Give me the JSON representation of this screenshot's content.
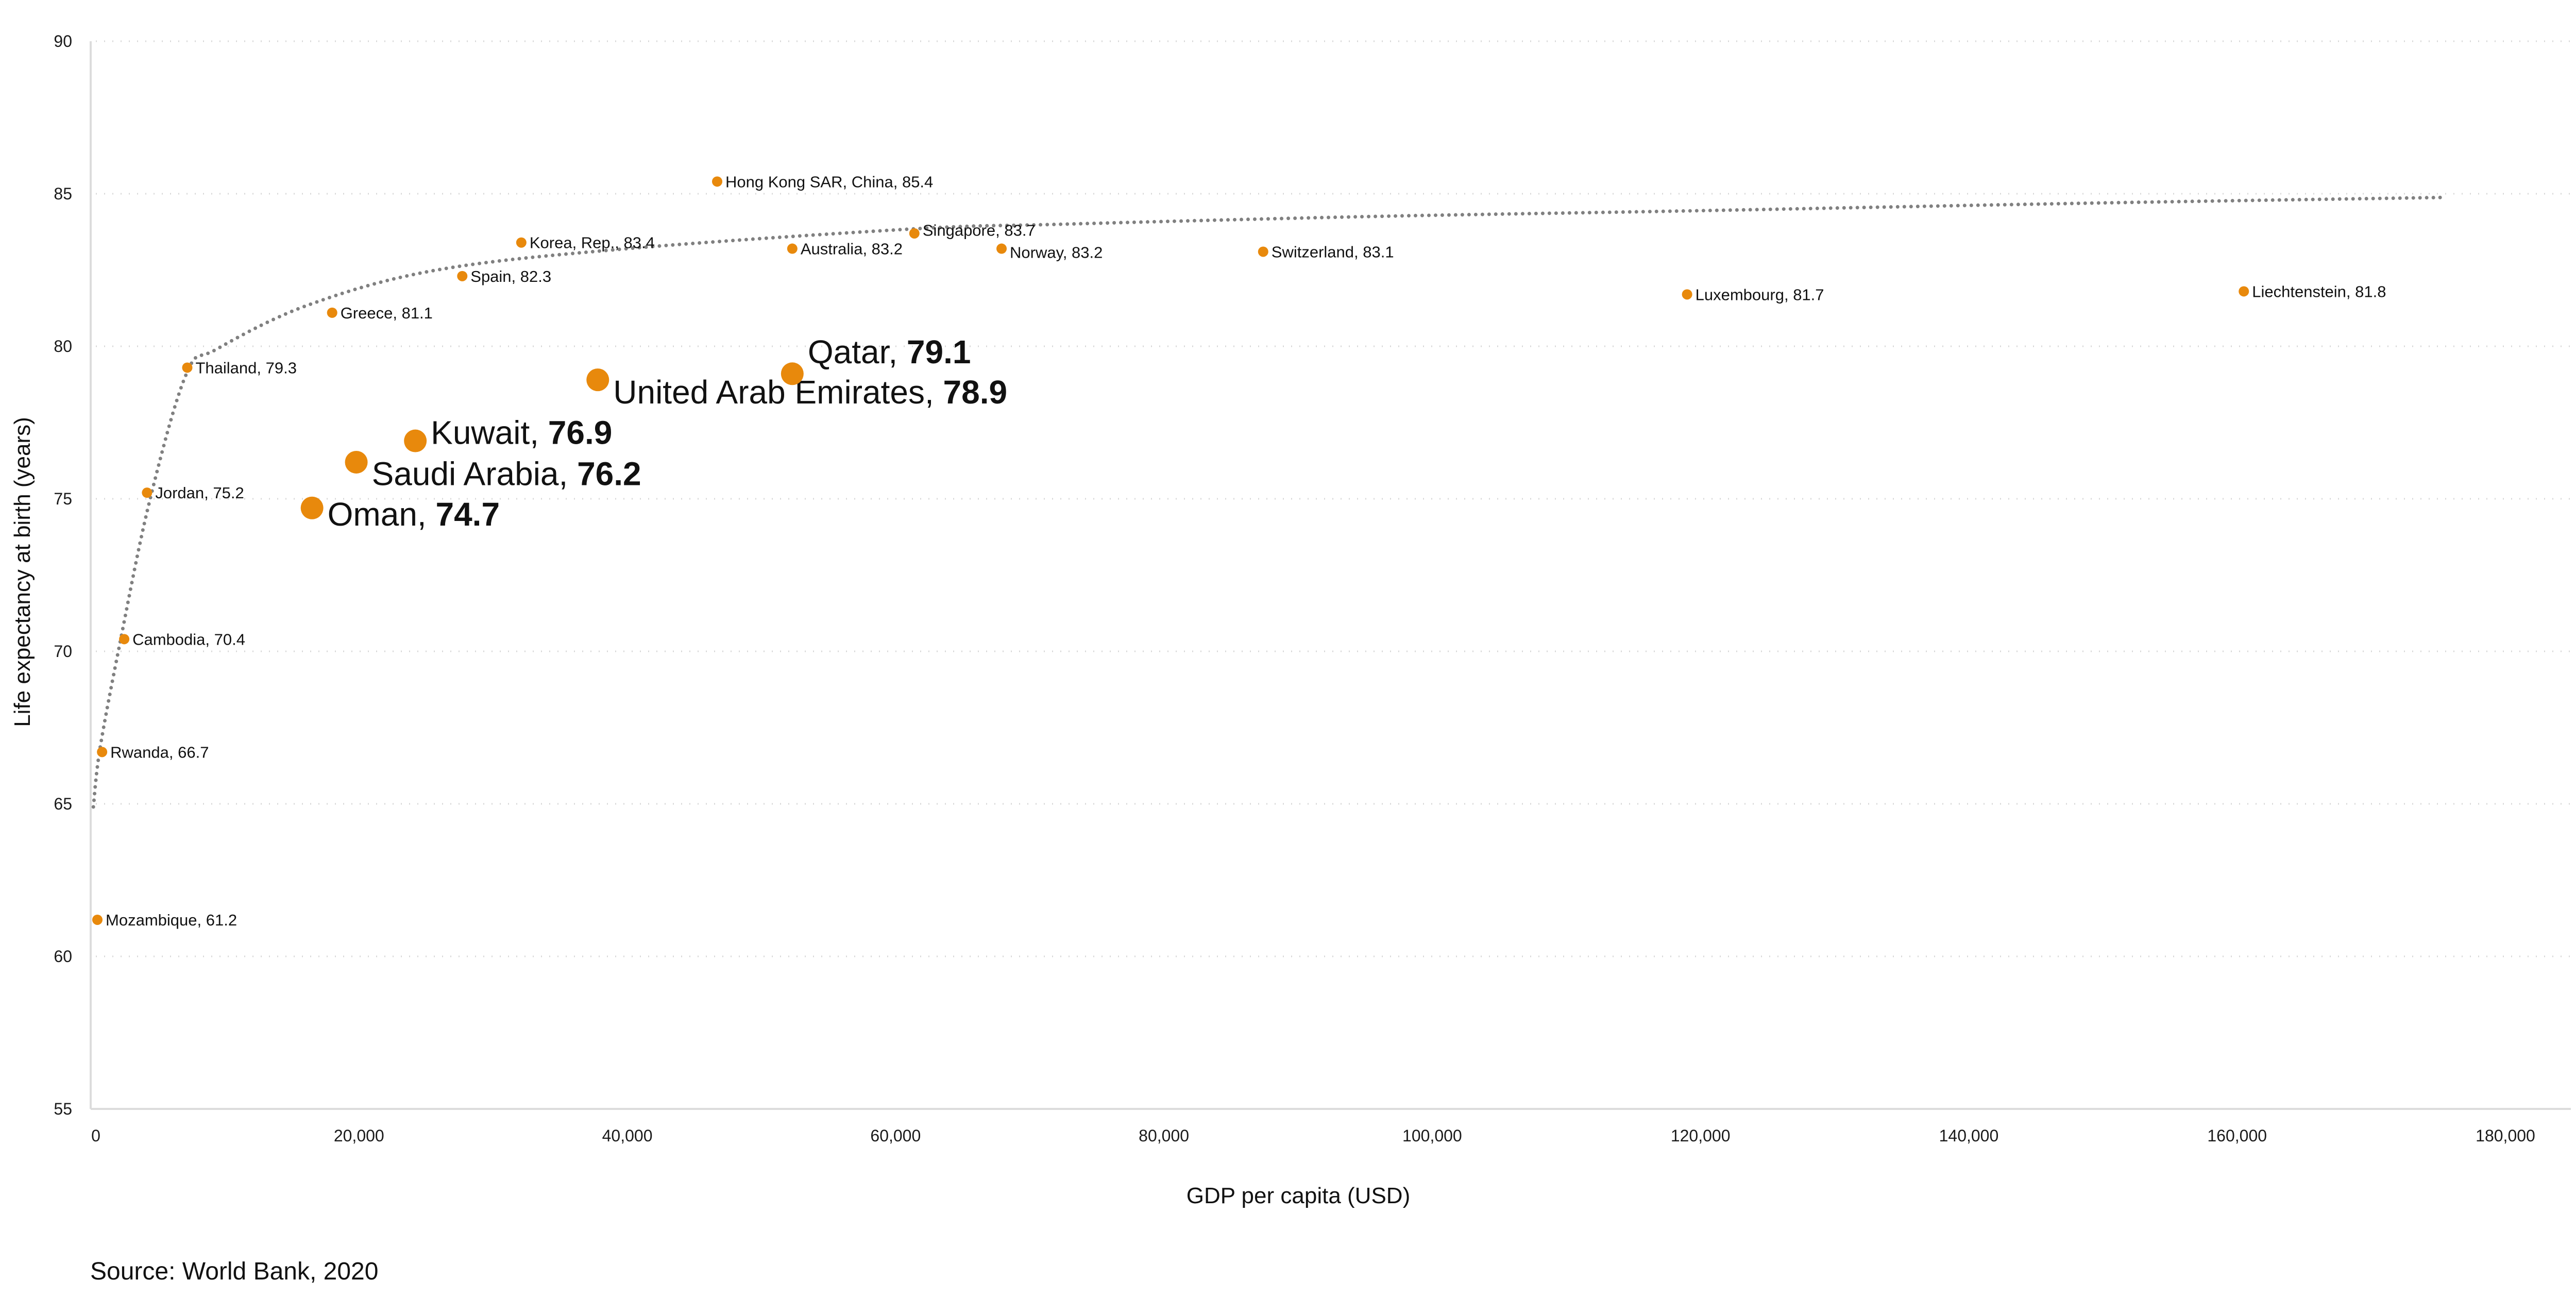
{
  "chart_data": {
    "type": "scatter",
    "xlabel": "GDP per capita (USD)",
    "ylabel": "Life expectancy at birth (years)",
    "xlim": [
      0,
      180000
    ],
    "ylim": [
      55,
      90
    ],
    "x_ticks": [
      "0",
      "20,000",
      "40,000",
      "60,000",
      "80,000",
      "100,000",
      "120,000",
      "140,000",
      "160,000",
      "180,000"
    ],
    "y_ticks": [
      "55",
      "60",
      "65",
      "70",
      "75",
      "80",
      "85",
      "90"
    ],
    "grid": "horizontal dotted",
    "point_color": "#E8890C",
    "trendline_color": "#808080",
    "points": [
      {
        "name": "Mozambique",
        "x": 500,
        "y": 61.2,
        "highlight": false
      },
      {
        "name": "Rwanda",
        "x": 850,
        "y": 66.7,
        "highlight": false
      },
      {
        "name": "Cambodia",
        "x": 2500,
        "y": 70.4,
        "highlight": false
      },
      {
        "name": "Jordan",
        "x": 4200,
        "y": 75.2,
        "highlight": false
      },
      {
        "name": "Thailand",
        "x": 7200,
        "y": 79.3,
        "highlight": false
      },
      {
        "name": "Greece",
        "x": 18000,
        "y": 81.1,
        "highlight": false
      },
      {
        "name": "Spain",
        "x": 27700,
        "y": 82.3,
        "highlight": false
      },
      {
        "name": "Korea, Rep.",
        "x": 32100,
        "y": 83.4,
        "highlight": false
      },
      {
        "name": "Hong Kong SAR, China",
        "x": 46700,
        "y": 85.4,
        "highlight": false
      },
      {
        "name": "Australia",
        "x": 52300,
        "y": 83.2,
        "highlight": false
      },
      {
        "name": "Singapore",
        "x": 61400,
        "y": 83.7,
        "highlight": false
      },
      {
        "name": "Norway",
        "x": 67900,
        "y": 83.2,
        "highlight": false
      },
      {
        "name": "Switzerland",
        "x": 87400,
        "y": 83.1,
        "highlight": false
      },
      {
        "name": "Luxembourg",
        "x": 119000,
        "y": 81.7,
        "highlight": false
      },
      {
        "name": "Liechtenstein",
        "x": 160500,
        "y": 81.8,
        "highlight": false
      },
      {
        "name": "Oman",
        "x": 16500,
        "y": 74.7,
        "highlight": true
      },
      {
        "name": "Saudi Arabia",
        "x": 19800,
        "y": 76.2,
        "highlight": true
      },
      {
        "name": "Kuwait",
        "x": 24200,
        "y": 76.9,
        "highlight": true
      },
      {
        "name": "United Arab Emirates",
        "x": 37800,
        "y": 78.9,
        "highlight": true
      },
      {
        "name": "Qatar",
        "x": 52300,
        "y": 79.1,
        "highlight": true
      }
    ],
    "trendline": [
      [
        200,
        64.9
      ],
      [
        690,
        66.8
      ],
      [
        2150,
        70.2
      ],
      [
        4380,
        74.9
      ],
      [
        7140,
        79.1
      ],
      [
        9370,
        79.9
      ],
      [
        16200,
        81.35
      ],
      [
        25800,
        82.5
      ],
      [
        40000,
        83.2
      ],
      [
        61400,
        83.85
      ],
      [
        72300,
        84.0
      ],
      [
        95000,
        84.25
      ],
      [
        119300,
        84.44
      ],
      [
        150000,
        84.7
      ],
      [
        175500,
        84.88
      ]
    ]
  },
  "source": "Source: World Bank, 2020"
}
